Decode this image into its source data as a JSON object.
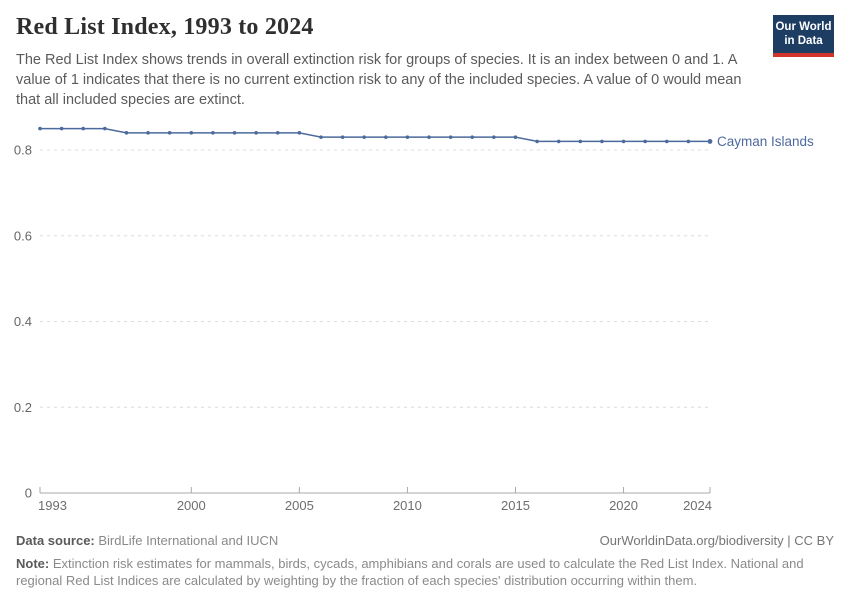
{
  "header": {
    "title": "Red List Index, 1993 to 2024",
    "subtitle": "The Red List Index shows trends in overall extinction risk for groups of species. It is an index between 0 and 1. A value of 1 indicates that there is no current extinction risk to any of the included species. A value of 0 would mean that all included species are extinct."
  },
  "logo": {
    "line1": "Our World",
    "line2": "in Data",
    "bg_color": "#1d3d63",
    "accent_color": "#d1342b"
  },
  "chart_data": {
    "type": "line",
    "title": "Red List Index, 1993 to 2024",
    "xlabel": "",
    "ylabel": "",
    "x": [
      1993,
      1994,
      1995,
      1996,
      1997,
      1998,
      1999,
      2000,
      2001,
      2002,
      2003,
      2004,
      2005,
      2006,
      2007,
      2008,
      2009,
      2010,
      2011,
      2012,
      2013,
      2014,
      2015,
      2016,
      2017,
      2018,
      2019,
      2020,
      2021,
      2022,
      2023,
      2024
    ],
    "series": [
      {
        "name": "Cayman Islands",
        "color": "#4c6a9c",
        "values": [
          0.85,
          0.85,
          0.85,
          0.85,
          0.84,
          0.84,
          0.84,
          0.84,
          0.84,
          0.84,
          0.84,
          0.84,
          0.84,
          0.83,
          0.83,
          0.83,
          0.83,
          0.83,
          0.83,
          0.83,
          0.83,
          0.83,
          0.83,
          0.82,
          0.82,
          0.82,
          0.82,
          0.82,
          0.82,
          0.82,
          0.82,
          0.82
        ]
      }
    ],
    "xticks": [
      1993,
      2000,
      2005,
      2010,
      2015,
      2020,
      2024
    ],
    "yticks": [
      0,
      0.2,
      0.4,
      0.6,
      0.8
    ],
    "ylim": [
      0,
      0.87
    ],
    "xlim": [
      1993,
      2024
    ],
    "grid": "dashed horizontal gridlines",
    "legend": "entity label at right end of line",
    "colors": {
      "line": "#4c6a9c",
      "gridline": "#dcdcdc",
      "axis": "#a8a8a8",
      "tick_label": "#6e6e6e"
    }
  },
  "footer": {
    "datasource_label": "Data source:",
    "datasource_value": "BirdLife International and IUCN",
    "link_text": "OurWorldinData.org/biodiversity",
    "license_suffix": " | CC BY",
    "note_label": "Note:",
    "note_value": "Extinction risk estimates for mammals, birds, cycads, amphibians and corals are used to calculate the Red List Index. National and regional Red List Indices are calculated by weighting by the fraction of each species' distribution occurring within them."
  }
}
